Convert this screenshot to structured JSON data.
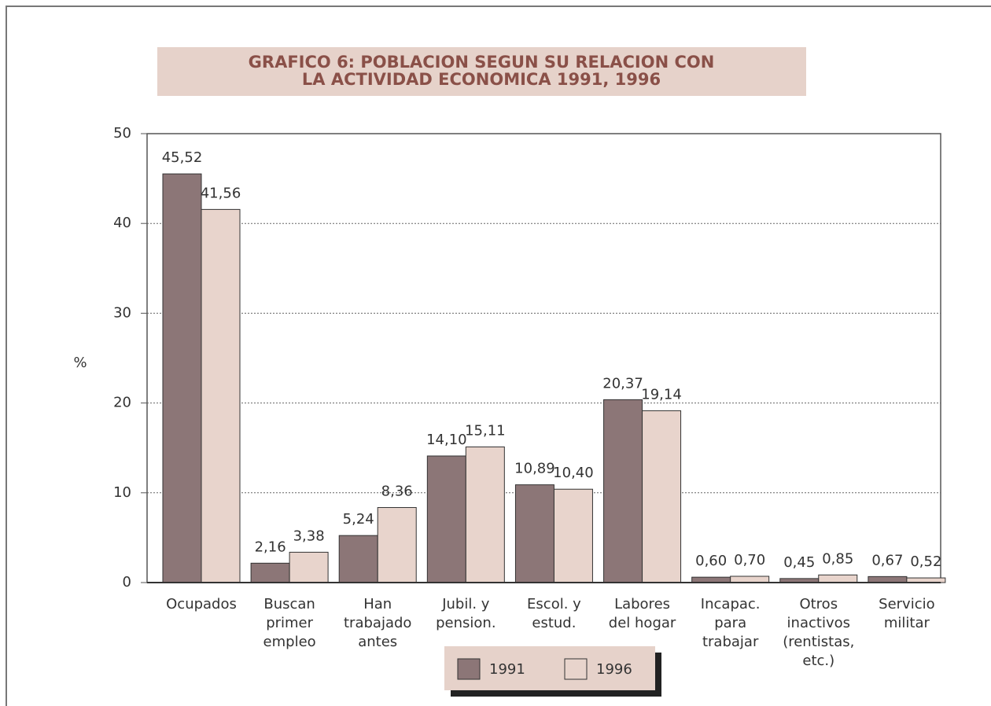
{
  "chart_data": {
    "type": "bar",
    "title": [
      "GRAFICO 6: POBLACION SEGUN SU RELACION CON",
      "LA ACTIVIDAD ECONOMICA 1991, 1996"
    ],
    "y_label": "%",
    "categories": [
      [
        "Ocupados"
      ],
      [
        "Buscan",
        "primer",
        "empleo"
      ],
      [
        "Han",
        "trabajado",
        "antes"
      ],
      [
        "Jubil. y",
        "pension."
      ],
      [
        "Escol. y",
        "estud."
      ],
      [
        "Labores",
        "del hogar"
      ],
      [
        "Incapac.",
        "para",
        "trabajar"
      ],
      [
        "Otros",
        "inactivos",
        "(rentistas,",
        "etc.)"
      ],
      [
        "Servicio",
        "militar"
      ]
    ],
    "series": [
      {
        "name": "1991",
        "color": "#8c7677",
        "values": [
          45.52,
          2.16,
          5.24,
          14.1,
          10.89,
          20.37,
          0.6,
          0.45,
          0.67
        ],
        "value_labels": [
          "45,52",
          "2,16",
          "5,24",
          "14,10",
          "10,89",
          "20,37",
          "0,60",
          "0,45",
          "0,67"
        ]
      },
      {
        "name": "1996",
        "color": "#e8d4cc",
        "values": [
          41.56,
          3.38,
          8.36,
          15.11,
          10.4,
          19.14,
          0.7,
          0.85,
          0.52
        ],
        "value_labels": [
          "41,56",
          "3,38",
          "8,36",
          "15,11",
          "10,40",
          "19,14",
          "0,70",
          "0,85",
          "0,52"
        ]
      }
    ],
    "ylim": [
      0,
      50
    ],
    "yticks": [
      0,
      10,
      20,
      30,
      40,
      50
    ],
    "grid": true
  }
}
